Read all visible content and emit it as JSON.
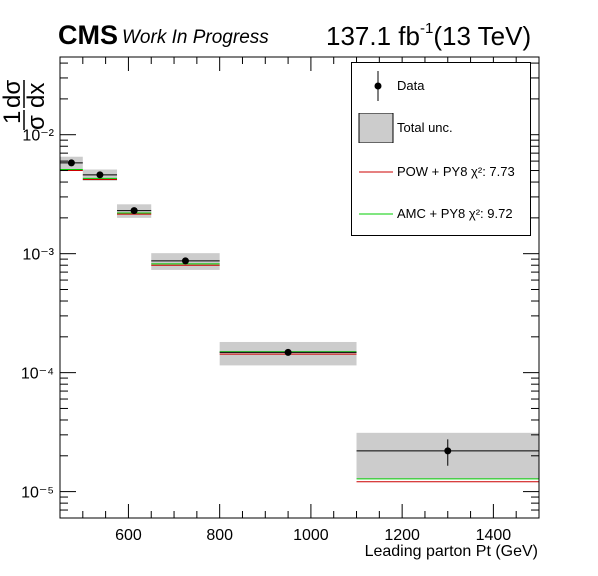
{
  "header": {
    "experiment": "CMS",
    "status": "Work In Progress",
    "lumi_value": "137.1 fb",
    "lumi_exponent": "-1",
    "energy": "(13 TeV)"
  },
  "legend": {
    "items": [
      {
        "label": "Data",
        "kind": "marker"
      },
      {
        "label": "Total unc.",
        "kind": "box"
      },
      {
        "label": "POW + PY8 χ²: 7.73",
        "kind": "line",
        "color": "#cc0000"
      },
      {
        "label": "AMC + PY8 χ²: 9.72",
        "kind": "line",
        "color": "#00cc00"
      }
    ]
  },
  "chart_data": {
    "type": "scatter",
    "xlabel": "Leading parton Pt (GeV)",
    "ylabel": "1/σ dσ/dx",
    "xlim": [
      450,
      1500
    ],
    "ylim": [
      6e-06,
      0.045
    ],
    "yscale": "log",
    "x_ticks": [
      "600",
      "800",
      "1000",
      "1200",
      "1400"
    ],
    "y_ticks": [
      "10⁻²",
      "10⁻³",
      "10⁻⁴",
      "10⁻⁵"
    ],
    "bins": [
      {
        "low": 450,
        "high": 500,
        "data": 0.0058,
        "data_err": 0.0003,
        "unc": 0.00073,
        "pow": 0.005,
        "amc": 0.0051
      },
      {
        "low": 500,
        "high": 575,
        "data": 0.0046,
        "data_err": 0.0002,
        "unc": 0.0005,
        "pow": 0.0042,
        "amc": 0.0043
      },
      {
        "low": 575,
        "high": 650,
        "data": 0.0023,
        "data_err": 0.0001,
        "unc": 0.0003,
        "pow": 0.00215,
        "amc": 0.0022
      },
      {
        "low": 650,
        "high": 800,
        "data": 0.00087,
        "data_err": 3e-05,
        "unc": 0.00014,
        "pow": 0.0008,
        "amc": 0.00082
      },
      {
        "low": 800,
        "high": 1100,
        "data": 0.000148,
        "data_err": 8e-06,
        "unc": 3.3e-05,
        "pow": 0.000143,
        "amc": 0.00015
      },
      {
        "low": 1100,
        "high": 1500,
        "data": 2.2e-05,
        "data_err": 5.5e-06,
        "unc": 9.2e-06,
        "pow": 1.21e-05,
        "amc": 1.28e-05
      }
    ],
    "series": [
      {
        "name": "Data",
        "color": "#000000"
      },
      {
        "name": "Total unc.",
        "color": "#cccccc"
      },
      {
        "name": "POW + PY8",
        "color": "#cc0000"
      },
      {
        "name": "AMC + PY8",
        "color": "#00cc00"
      }
    ],
    "grid": false,
    "legend_position": "top-right"
  }
}
